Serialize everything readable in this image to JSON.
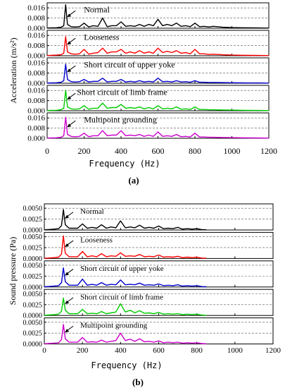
{
  "chart_data": [
    {
      "type": "line",
      "panel_label": "(a)",
      "xlabel": "Frequency (Hz)",
      "ylabel": "Acceleration (m/s²)",
      "xlim": [
        0,
        1200
      ],
      "xticks": [
        "0",
        "200",
        "400",
        "600",
        "800",
        "1000",
        "1200"
      ],
      "ylim": [
        0,
        0.02
      ],
      "yticks": [
        "0.000",
        "0.008",
        "0.016"
      ],
      "grid": "horizontal dashed",
      "x": [
        0,
        20,
        50,
        75,
        90,
        100,
        110,
        130,
        150,
        175,
        200,
        225,
        250,
        275,
        300,
        325,
        350,
        375,
        400,
        425,
        450,
        475,
        500,
        525,
        550,
        575,
        600,
        625,
        650,
        675,
        700,
        725,
        750,
        775,
        800,
        825,
        850,
        875,
        900,
        950,
        1000,
        1050,
        1100,
        1150,
        1200
      ],
      "series": [
        {
          "name": "Normal",
          "color": "#000000",
          "values": [
            0.0001,
            0.0003,
            0.0004,
            0.0008,
            0.002,
            0.0185,
            0.003,
            0.0012,
            0.001,
            0.0012,
            0.004,
            0.001,
            0.002,
            0.0015,
            0.008,
            0.0012,
            0.002,
            0.002,
            0.005,
            0.0015,
            0.002,
            0.0015,
            0.003,
            0.0015,
            0.003,
            0.002,
            0.007,
            0.002,
            0.003,
            0.002,
            0.004,
            0.0015,
            0.002,
            0.0012,
            0.004,
            0.0012,
            0.0015,
            0.001,
            0.0015,
            0.0008,
            0.0005,
            0.0004,
            0.0003,
            0.0002,
            0.0001
          ]
        },
        {
          "name": "Looseness",
          "color": "#ff0000",
          "values": [
            0.0001,
            0.0003,
            0.0005,
            0.0008,
            0.002,
            0.015,
            0.003,
            0.0015,
            0.0012,
            0.0015,
            0.005,
            0.0012,
            0.002,
            0.0025,
            0.006,
            0.002,
            0.003,
            0.003,
            0.005,
            0.002,
            0.003,
            0.002,
            0.004,
            0.002,
            0.003,
            0.002,
            0.006,
            0.0025,
            0.0035,
            0.0025,
            0.004,
            0.002,
            0.0025,
            0.0015,
            0.005,
            0.0015,
            0.0015,
            0.001,
            0.0012,
            0.0008,
            0.0005,
            0.0004,
            0.0003,
            0.0002,
            0.0001
          ]
        },
        {
          "name": "Short circuit of upper yoke",
          "color": "#0000cc",
          "values": [
            0.0001,
            0.0003,
            0.0004,
            0.0008,
            0.002,
            0.015,
            0.003,
            0.0012,
            0.001,
            0.0012,
            0.003,
            0.001,
            0.0015,
            0.0015,
            0.004,
            0.001,
            0.0015,
            0.0015,
            0.003,
            0.001,
            0.0015,
            0.001,
            0.002,
            0.001,
            0.0015,
            0.001,
            0.004,
            0.0012,
            0.0015,
            0.001,
            0.002,
            0.001,
            0.0012,
            0.0008,
            0.002,
            0.0008,
            0.0008,
            0.0006,
            0.0006,
            0.0005,
            0.0004,
            0.0003,
            0.0002,
            0.0002,
            0.0001
          ]
        },
        {
          "name": "Short circuit of limb frame",
          "color": "#00cc00",
          "values": [
            0.0001,
            0.0003,
            0.0004,
            0.0008,
            0.002,
            0.016,
            0.003,
            0.0015,
            0.0012,
            0.0015,
            0.004,
            0.0012,
            0.002,
            0.002,
            0.006,
            0.002,
            0.0025,
            0.0025,
            0.005,
            0.002,
            0.0025,
            0.002,
            0.003,
            0.0015,
            0.0025,
            0.0015,
            0.004,
            0.0015,
            0.002,
            0.0015,
            0.003,
            0.0012,
            0.0015,
            0.001,
            0.003,
            0.001,
            0.001,
            0.0008,
            0.0008,
            0.0006,
            0.0005,
            0.0004,
            0.0003,
            0.0002,
            0.0001
          ]
        },
        {
          "name": "Multipoint grounding",
          "color": "#cc00cc",
          "values": [
            0.0001,
            0.0003,
            0.0004,
            0.0008,
            0.002,
            0.0165,
            0.003,
            0.0015,
            0.0012,
            0.0015,
            0.004,
            0.0012,
            0.002,
            0.002,
            0.006,
            0.002,
            0.0025,
            0.0025,
            0.006,
            0.002,
            0.0025,
            0.002,
            0.003,
            0.0015,
            0.0025,
            0.0015,
            0.005,
            0.0015,
            0.002,
            0.0015,
            0.003,
            0.0012,
            0.0015,
            0.001,
            0.004,
            0.001,
            0.001,
            0.0008,
            0.0008,
            0.0006,
            0.0005,
            0.0004,
            0.0003,
            0.0002,
            0.0001
          ]
        }
      ]
    },
    {
      "type": "line",
      "panel_label": "(b)",
      "xlabel": "Frequency (Hz)",
      "ylabel": "Sound pressure (Pa)",
      "xlim": [
        0,
        1200
      ],
      "xticks": [
        "0",
        "200",
        "400",
        "600",
        "800",
        "1000",
        "1200"
      ],
      "ylim": [
        0,
        0.006
      ],
      "yticks": [
        "0.0000",
        "0.0025",
        "0.0050"
      ],
      "grid": "horizontal dashed",
      "x": [
        0,
        20,
        50,
        75,
        90,
        100,
        110,
        130,
        150,
        175,
        200,
        225,
        250,
        275,
        300,
        325,
        350,
        375,
        400,
        425,
        450,
        475,
        500,
        525,
        550,
        575,
        600,
        625,
        650,
        675,
        700,
        725,
        750,
        775,
        800,
        825,
        850
      ],
      "series": [
        {
          "name": "Normal",
          "color": "#000000",
          "values": [
            5e-05,
            0.0001,
            0.0002,
            0.0003,
            0.001,
            0.0047,
            0.0012,
            0.0004,
            0.0004,
            0.0004,
            0.0014,
            0.0004,
            0.0006,
            0.0004,
            0.0012,
            0.0004,
            0.0007,
            0.0005,
            0.0021,
            0.0005,
            0.0007,
            0.0005,
            0.0011,
            0.0004,
            0.0006,
            0.0004,
            0.0009,
            0.0003,
            0.0004,
            0.0003,
            0.0006,
            0.0002,
            0.0003,
            0.0002,
            0.0003,
            0.0001,
            5e-05
          ]
        },
        {
          "name": "Looseness",
          "color": "#ff0000",
          "values": [
            5e-05,
            0.0001,
            0.0002,
            0.0003,
            0.001,
            0.0052,
            0.0012,
            0.0004,
            0.0004,
            0.0004,
            0.0016,
            0.0004,
            0.0006,
            0.0004,
            0.0011,
            0.0004,
            0.0006,
            0.0005,
            0.0013,
            0.0005,
            0.0006,
            0.0005,
            0.0009,
            0.0004,
            0.0005,
            0.0004,
            0.0008,
            0.0003,
            0.0004,
            0.0003,
            0.0005,
            0.0002,
            0.0003,
            0.0002,
            0.0003,
            0.0001,
            5e-05
          ]
        },
        {
          "name": "Short circuit of upper yoke",
          "color": "#0000cc",
          "values": [
            5e-05,
            0.0001,
            0.0002,
            0.0003,
            0.001,
            0.0044,
            0.0012,
            0.0004,
            0.0004,
            0.0004,
            0.0018,
            0.0004,
            0.0006,
            0.0004,
            0.001,
            0.0004,
            0.0006,
            0.0005,
            0.0016,
            0.0005,
            0.0006,
            0.0005,
            0.0009,
            0.0004,
            0.0005,
            0.0004,
            0.0007,
            0.0003,
            0.0004,
            0.0003,
            0.0005,
            0.0002,
            0.0003,
            0.0002,
            0.0003,
            0.0001,
            5e-05
          ]
        },
        {
          "name": "Short circuit of limb frame",
          "color": "#00cc00",
          "values": [
            5e-05,
            0.0001,
            0.0002,
            0.0003,
            0.001,
            0.004,
            0.0012,
            0.0004,
            0.0004,
            0.0004,
            0.0014,
            0.0004,
            0.0005,
            0.0004,
            0.0009,
            0.0004,
            0.0006,
            0.0008,
            0.0027,
            0.0008,
            0.0012,
            0.0006,
            0.0011,
            0.0005,
            0.0006,
            0.0004,
            0.0007,
            0.0003,
            0.0004,
            0.0003,
            0.0004,
            0.0002,
            0.0003,
            0.0002,
            0.0003,
            0.0001,
            5e-05
          ]
        },
        {
          "name": "Multipoint grounding",
          "color": "#cc00cc",
          "values": [
            5e-05,
            0.0001,
            0.0002,
            0.0003,
            0.001,
            0.0045,
            0.0012,
            0.0004,
            0.0004,
            0.0004,
            0.0015,
            0.0004,
            0.0005,
            0.0004,
            0.0009,
            0.0004,
            0.0006,
            0.0008,
            0.0025,
            0.0008,
            0.0011,
            0.0006,
            0.0012,
            0.0005,
            0.0006,
            0.0004,
            0.0007,
            0.0003,
            0.0004,
            0.0003,
            0.0004,
            0.0002,
            0.0003,
            0.0002,
            0.0003,
            0.0001,
            5e-05
          ]
        }
      ]
    }
  ]
}
